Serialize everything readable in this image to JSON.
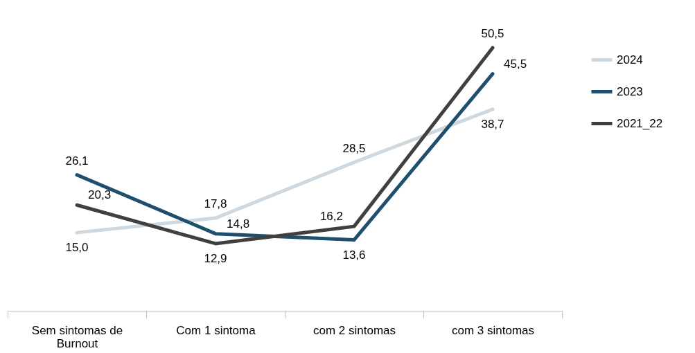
{
  "chart_data": {
    "type": "line",
    "categories": [
      "Sem sintomas de Burnout",
      "Com 1 sintoma",
      "com 2 sintomas",
      "com 3 sintomas"
    ],
    "series": [
      {
        "name": "2024",
        "color": "#cfd8de",
        "values": [
          15.0,
          17.8,
          28.5,
          38.7
        ],
        "value_labels": [
          "15,0",
          "17,8",
          "28,5",
          "38,7"
        ]
      },
      {
        "name": "2023",
        "color": "#1f4e6e",
        "values": [
          26.1,
          14.8,
          13.6,
          45.5
        ],
        "value_labels": [
          "26,1",
          "14,8",
          "13,6",
          "45,5"
        ]
      },
      {
        "name": "2021_22",
        "color": "#404040",
        "values": [
          20.3,
          12.9,
          16.2,
          50.5
        ],
        "value_labels": [
          "20,3",
          "12,9",
          "16,2",
          "50,5"
        ]
      }
    ],
    "legend": "right",
    "line_style": "solid"
  }
}
